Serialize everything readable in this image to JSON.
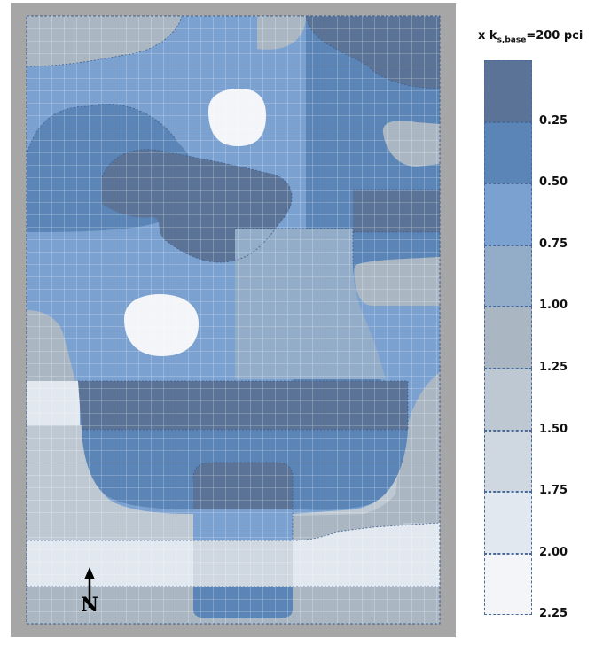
{
  "legend": {
    "title_prefix": "x k",
    "title_sub": "s,base",
    "title_suffix": "=200 pci",
    "ticks": [
      "0.25",
      "0.50",
      "0.75",
      "1.00",
      "1.25",
      "1.50",
      "1.75",
      "2.00",
      "2.25"
    ],
    "colors": [
      "#5a7396",
      "#5a85b6",
      "#7ba1d1",
      "#93adc9",
      "#aab7c3",
      "#bec8d2",
      "#cfd7e0",
      "#e1e8f0",
      "#f3f5f8"
    ]
  },
  "map": {
    "north_label": "N",
    "frame_color": "#a6a6a6",
    "grid_color": "#ffffff"
  }
}
